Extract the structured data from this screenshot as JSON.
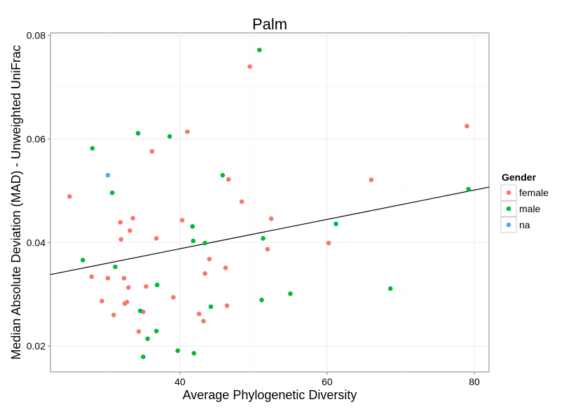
{
  "chart_data": {
    "type": "scatter",
    "title": "Palm",
    "xlabel": "Average Phylogenetic Diversity",
    "ylabel": "Median Absolute Deviation (MAD) - Unweighted UniFrac",
    "xlim": [
      22.4,
      82.0
    ],
    "ylim": [
      0.015,
      0.0805
    ],
    "x_ticks": [
      40,
      60,
      80
    ],
    "x_tick_labels": [
      "40",
      "60",
      "80"
    ],
    "y_ticks": [
      0.02,
      0.04,
      0.06,
      0.08
    ],
    "y_tick_labels": [
      "0.02",
      "0.04",
      "0.06",
      "0.08"
    ],
    "grid": true,
    "legend": {
      "title": "Gender",
      "position": "right",
      "entries": [
        {
          "label": "female",
          "color": "#F8766D"
        },
        {
          "label": "male",
          "color": "#00BA38"
        },
        {
          "label": "na",
          "color": "#619CFF"
        }
      ]
    },
    "trend_line": {
      "x": [
        22.4,
        82.0
      ],
      "y": [
        0.0338,
        0.0507
      ]
    },
    "series": [
      {
        "name": "female",
        "color": "#F8766D",
        "points": [
          [
            25.0,
            0.0489
          ],
          [
            28.0,
            0.0334
          ],
          [
            29.4,
            0.0287
          ],
          [
            30.2,
            0.0331
          ],
          [
            31.0,
            0.026
          ],
          [
            31.9,
            0.0439
          ],
          [
            32.0,
            0.0406
          ],
          [
            32.4,
            0.0331
          ],
          [
            32.5,
            0.0282
          ],
          [
            32.8,
            0.0285
          ],
          [
            33.0,
            0.0313
          ],
          [
            33.2,
            0.0423
          ],
          [
            33.6,
            0.0447
          ],
          [
            34.4,
            0.0228
          ],
          [
            35.0,
            0.0266
          ],
          [
            35.4,
            0.0315
          ],
          [
            36.2,
            0.0576
          ],
          [
            36.8,
            0.0408
          ],
          [
            39.1,
            0.0294
          ],
          [
            40.3,
            0.0443
          ],
          [
            41.0,
            0.0614
          ],
          [
            42.6,
            0.0262
          ],
          [
            43.2,
            0.0248
          ],
          [
            43.4,
            0.034
          ],
          [
            44.0,
            0.0368
          ],
          [
            46.2,
            0.0351
          ],
          [
            46.4,
            0.0278
          ],
          [
            46.6,
            0.0522
          ],
          [
            48.4,
            0.0479
          ],
          [
            49.5,
            0.074
          ],
          [
            51.9,
            0.0387
          ],
          [
            52.4,
            0.0446
          ],
          [
            60.2,
            0.0399
          ],
          [
            66.0,
            0.0521
          ],
          [
            79.0,
            0.0625
          ]
        ]
      },
      {
        "name": "male",
        "color": "#00BA38",
        "points": [
          [
            26.8,
            0.0366
          ],
          [
            28.1,
            0.0582
          ],
          [
            30.8,
            0.0496
          ],
          [
            31.2,
            0.0353
          ],
          [
            34.3,
            0.0611
          ],
          [
            34.6,
            0.0268
          ],
          [
            35.0,
            0.0179
          ],
          [
            35.6,
            0.0214
          ],
          [
            36.8,
            0.0229
          ],
          [
            36.9,
            0.0318
          ],
          [
            38.6,
            0.0605
          ],
          [
            39.7,
            0.0191
          ],
          [
            41.7,
            0.0431
          ],
          [
            41.8,
            0.0403
          ],
          [
            41.9,
            0.0186
          ],
          [
            43.4,
            0.0399
          ],
          [
            44.2,
            0.0276
          ],
          [
            45.8,
            0.053
          ],
          [
            50.8,
            0.0772
          ],
          [
            51.1,
            0.0289
          ],
          [
            51.3,
            0.0408
          ],
          [
            55.0,
            0.0301
          ],
          [
            61.2,
            0.0436
          ],
          [
            68.6,
            0.0311
          ],
          [
            79.2,
            0.0503
          ]
        ]
      },
      {
        "name": "na",
        "color": "#619CFF",
        "points": [
          [
            30.2,
            0.053
          ]
        ]
      }
    ]
  }
}
